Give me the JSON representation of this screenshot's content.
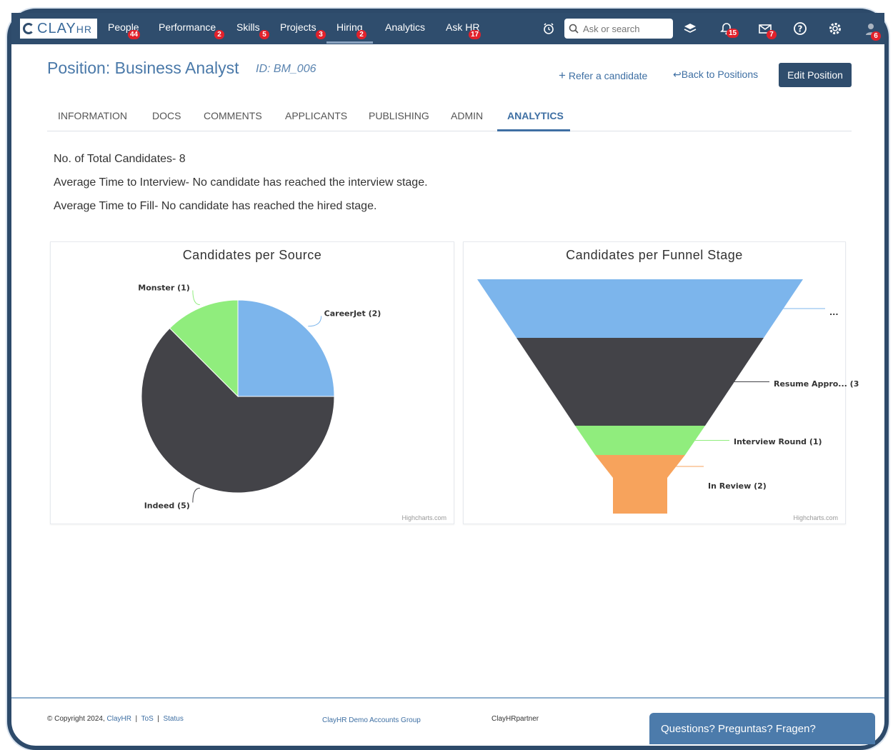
{
  "nav": {
    "logo": "CLAY",
    "logo_suffix": "HR",
    "items": [
      {
        "label": "People",
        "badge": "44"
      },
      {
        "label": "Performance",
        "badge": "2"
      },
      {
        "label": "Skills",
        "badge": "5"
      },
      {
        "label": "Projects",
        "badge": "3"
      },
      {
        "label": "Hiring",
        "badge": "2"
      },
      {
        "label": "Analytics",
        "badge": ""
      },
      {
        "label": "Ask HR",
        "badge": "17"
      }
    ],
    "search_placeholder": "Ask or search",
    "notifications_badge": "15",
    "mail_badge": "7",
    "avatar_badge": "6"
  },
  "header": {
    "title": "Position: Business Analyst",
    "id": "ID: BM_006",
    "refer": "Refer a candidate",
    "back": "Back to Positions",
    "edit": "Edit Position"
  },
  "tabs": [
    "INFORMATION",
    "DOCS",
    "COMMENTS",
    "APPLICANTS",
    "PUBLISHING",
    "ADMIN",
    "ANALYTICS"
  ],
  "active_tab": "ANALYTICS",
  "stats": {
    "total": "No. of Total Candidates- 8",
    "interview": "Average Time to Interview- No candidate has reached the interview stage.",
    "fill": "Average Time to Fill- No candidate has reached the hired stage."
  },
  "chart_data": [
    {
      "type": "pie",
      "title": "Candidates per Source",
      "credit": "Highcharts.com",
      "categories": [
        "CareerJet",
        "Indeed",
        "Monster"
      ],
      "values": [
        2,
        5,
        1
      ],
      "labels": [
        "CareerJet (2)",
        "Indeed (5)",
        "Monster (1)"
      ],
      "colors": [
        "#7cb5ec",
        "#434348",
        "#90ed7d"
      ]
    },
    {
      "type": "funnel",
      "title": "Candidates per Funnel Stage",
      "credit": "Highcharts.com",
      "labels": [
        "...",
        "Resume Appro... (3",
        "Interview Round (1)",
        "In Review (2)"
      ],
      "colors": [
        "#7cb5ec",
        "#434348",
        "#90ed7d",
        "#f7a35c"
      ]
    }
  ],
  "footer": {
    "copyright": "© Copyright 2024,",
    "brand": "ClayHR",
    "tos": "ToS",
    "status": "Status",
    "group": "ClayHR Demo Accounts Group",
    "partner": "ClayHRpartner",
    "help": "Questions? Preguntas? Fragen?"
  }
}
